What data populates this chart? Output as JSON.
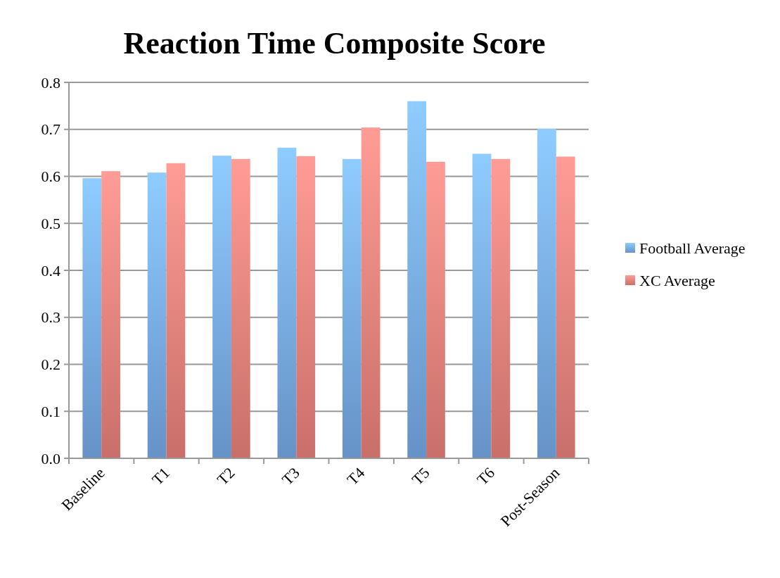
{
  "chart_data": {
    "type": "bar",
    "title": "Reaction Time Composite Score",
    "categories": [
      "Baseline",
      "T1",
      "T2",
      "T3",
      "T4",
      "T5",
      "T6",
      "Post-Season"
    ],
    "series": [
      {
        "name": "Football Average",
        "color": "#7aaeee",
        "values": [
          0.596,
          0.608,
          0.644,
          0.661,
          0.637,
          0.76,
          0.648,
          0.701
        ]
      },
      {
        "name": "XC Average",
        "color": "#f0857f",
        "values": [
          0.611,
          0.628,
          0.637,
          0.643,
          0.704,
          0.631,
          0.637,
          0.642
        ]
      }
    ],
    "ylim": [
      0,
      0.8
    ],
    "yticks": [
      {
        "value": 0,
        "label": "0.0"
      },
      0.1,
      0.2,
      0.3,
      0.4,
      0.5,
      0.6,
      0.7,
      0.8
    ],
    "grid": "y",
    "legend": "right"
  }
}
